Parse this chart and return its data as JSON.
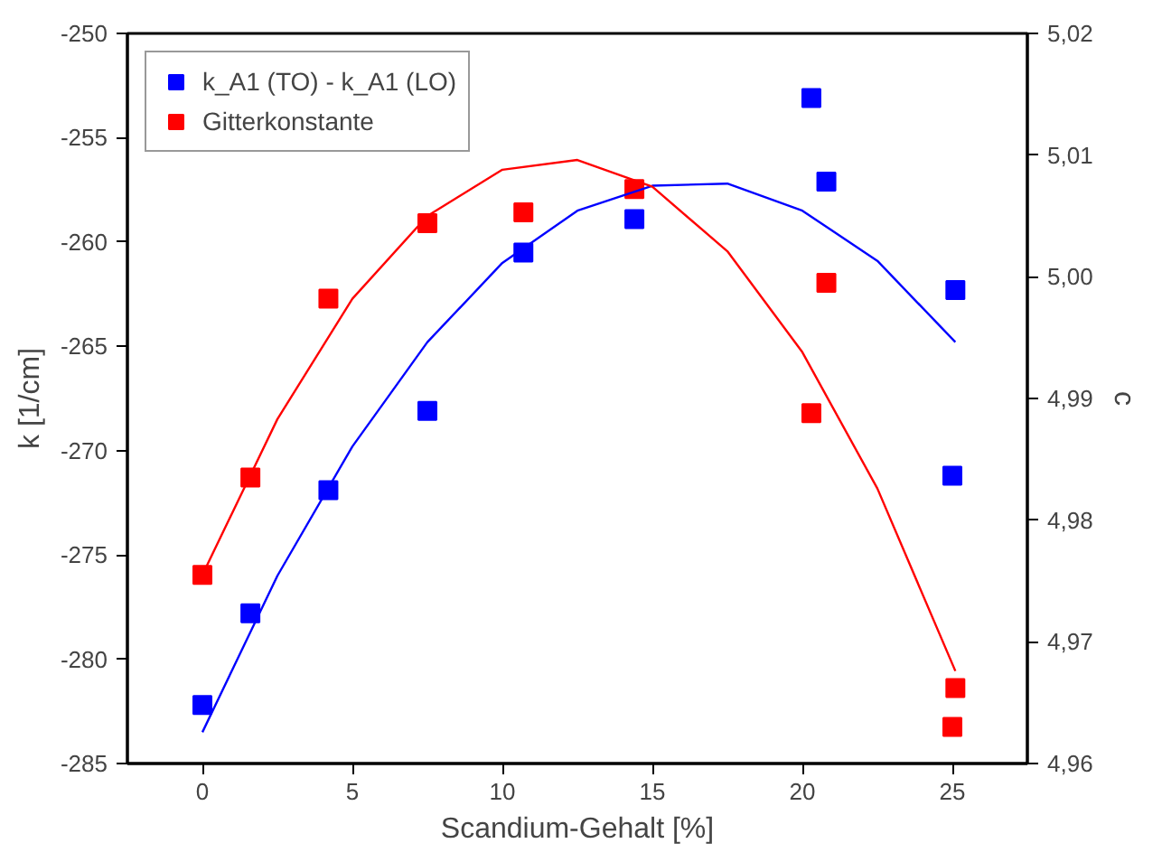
{
  "chart_data": {
    "type": "scatter",
    "xlabel": "Scandium-Gehalt [%]",
    "ylabel": "k [1/cm]",
    "y2label": "c",
    "xlim": [
      -2.5,
      27.5
    ],
    "xticks": [
      0,
      5,
      10,
      15,
      20,
      25
    ],
    "ylim": [
      -285,
      -250
    ],
    "yticks": [
      -285,
      -280,
      -275,
      -270,
      -265,
      -260,
      -255,
      -250
    ],
    "y2lim": [
      4.96,
      5.02
    ],
    "y2ticks": [
      {
        "value": 4.96,
        "label": "4,96"
      },
      {
        "value": 4.97,
        "label": "4,97"
      },
      {
        "value": 4.98,
        "label": "4,98"
      },
      {
        "value": 4.99,
        "label": "4,99"
      },
      {
        "value": 5.0,
        "label": "5,00"
      },
      {
        "value": 5.01,
        "label": "5,01"
      },
      {
        "value": 5.02,
        "label": "5,02"
      }
    ],
    "grid": false,
    "legend": "top left",
    "series": [
      {
        "name": "k_A1 (TO) - k_A1 (LO)",
        "marker": "square",
        "color": "#0000ff",
        "x": [
          0,
          1.6,
          4.2,
          7.5,
          10.7,
          14.4,
          20.3,
          20.8,
          25.1,
          25.0
        ],
        "values": [
          -282.2,
          -277.8,
          -271.9,
          -268.1,
          -260.5,
          -258.9,
          -253.1,
          -257.1,
          -262.3,
          -271.2
        ]
      },
      {
        "name": "Gitterkonstante",
        "marker": "square",
        "color": "#ff0000",
        "axis": "y2",
        "x": [
          0,
          1.6,
          4.2,
          7.5,
          10.7,
          14.4,
          20.3,
          20.8,
          25.1,
          25.0
        ],
        "values": [
          4.9755,
          4.9835,
          4.9982,
          5.0044,
          5.0053,
          5.0072,
          4.9888,
          4.9995,
          4.9662,
          4.963
        ]
      },
      {
        "type": "line",
        "marker": "none",
        "color": "#0000ff",
        "x": [
          0,
          2.5,
          5,
          7.5,
          10,
          12.5,
          15,
          17.5,
          20,
          22.5,
          25.1
        ],
        "values": [
          -283.5,
          -276.0,
          -269.8,
          -264.8,
          -261.0,
          -258.5,
          -257.3,
          -257.2,
          -258.5,
          -260.9,
          -264.8
        ]
      },
      {
        "type": "line",
        "marker": "none",
        "color": "#ff0000",
        "axis": "y2",
        "x": [
          0,
          2.5,
          5,
          7.5,
          10,
          12.5,
          15,
          17.5,
          20,
          22.5,
          25.1
        ],
        "values": [
          4.9755,
          4.9883,
          4.9982,
          5.005,
          5.0088,
          5.0096,
          5.0074,
          5.0021,
          4.9938,
          4.9826,
          4.9676
        ]
      }
    ]
  }
}
